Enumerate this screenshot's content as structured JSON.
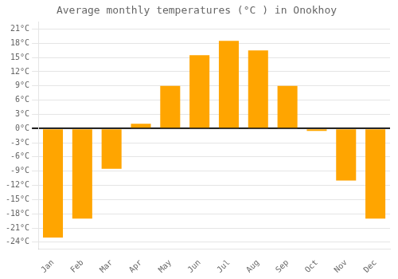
{
  "chart_data": {
    "type": "bar",
    "title": "Average monthly temperatures (°C ) in Onokhoy",
    "categories": [
      "Jan",
      "Feb",
      "Mar",
      "Apr",
      "May",
      "Jun",
      "Jul",
      "Aug",
      "Sep",
      "Oct",
      "Nov",
      "Dec"
    ],
    "values": [
      -23,
      -19,
      -8.5,
      1,
      9,
      15.5,
      18.5,
      16.5,
      9,
      -0.5,
      -11,
      -19
    ],
    "color": "#FFA500",
    "ylim": [
      -25.5,
      22.5
    ],
    "yticks": [
      {
        "value": -24,
        "label": "-24°C"
      },
      {
        "value": -21,
        "label": "-21°C"
      },
      {
        "value": -18,
        "label": "-18°C"
      },
      {
        "value": -15,
        "label": "-15°C"
      },
      {
        "value": -12,
        "label": "-12°C"
      },
      {
        "value": -9,
        "label": "-9°C"
      },
      {
        "value": -6,
        "label": "-6°C"
      },
      {
        "value": -3,
        "label": "-3°C"
      },
      {
        "value": 0,
        "label": "0°C"
      },
      {
        "value": 3,
        "label": "3°C"
      },
      {
        "value": 6,
        "label": "6°C"
      },
      {
        "value": 9,
        "label": "9°C"
      },
      {
        "value": 12,
        "label": "12°C"
      },
      {
        "value": 15,
        "label": "15°C"
      },
      {
        "value": 18,
        "label": "18°C"
      },
      {
        "value": 21,
        "label": "21°C"
      }
    ],
    "grid": true
  }
}
